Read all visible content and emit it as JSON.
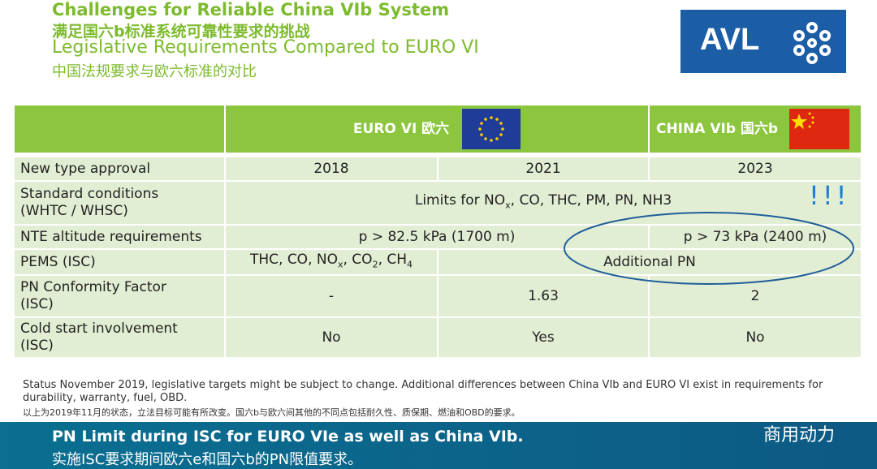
{
  "header": {
    "title": "Challenges for Reliable China VIb System",
    "title_cn": "满足国六b标准系统可靠性要求的挑战",
    "subtitle": "Legislative Requirements Compared to EURO VI",
    "subtitle_cn": "中国法规要求与欧六标准的对比"
  },
  "logo": "AVL",
  "table": {
    "columns": [
      "EURO VI 欧六",
      "CHINA VIb 国六b"
    ],
    "rows": [
      {
        "label": [
          "New type approval"
        ],
        "cells": [
          "2018",
          "2021",
          "2023"
        ]
      },
      {
        "label": [
          "Standard conditions",
          "(WHTC / WHSC)"
        ],
        "cells": [
          [
            "Limits for NO",
            "x",
            ", CO, THC, PM, PN, NH3"
          ]
        ]
      },
      {
        "label": [
          "NTE altitude requirements"
        ],
        "cells": [
          "p > 82.5 kPa (1700 m)",
          "p > 73 kPa (2400 m)"
        ]
      },
      {
        "label": [
          "PEMS (ISC)"
        ],
        "cells": [
          [
            "THC, CO, NO",
            "x",
            ", CO",
            "2",
            ", CH",
            "4"
          ],
          "Additional PN"
        ]
      },
      {
        "label": [
          "PN Conformity Factor",
          "(ISC)"
        ],
        "cells": [
          "-",
          "1.63",
          "2"
        ]
      },
      {
        "label": [
          "Cold start involvement",
          "(ISC)"
        ],
        "cells": [
          "No",
          "Yes",
          "No"
        ]
      }
    ]
  },
  "annotation": "!!!",
  "footnote": {
    "en": "Status November 2019, legislative targets might be subject to change. Additional differences between China VIb and EURO VI exist in requirements for durability, warranty, fuel, OBD.",
    "cn": "以上为2019年11月的状态，立法目标可能有所改变。国六b与欧六间其他的不同点包括耐久性、质保期、燃油和OBD的要求。"
  },
  "banner": {
    "en": "PN Limit during ISC for EURO VIe as well as China VIb.",
    "cn": "实施ISC要求期间欧六e和国六b的PN限值要求。"
  },
  "watermark": "商用动力"
}
